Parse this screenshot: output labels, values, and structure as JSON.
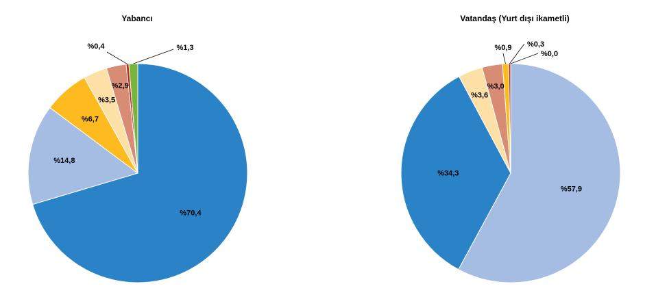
{
  "chart_data": [
    {
      "type": "pie",
      "title": "Yabancı",
      "start_angle_deg": 0,
      "direction": "clockwise",
      "slices": [
        {
          "label": "%70,4",
          "value": 70.4,
          "color": "#2a82c7"
        },
        {
          "label": "%14,8",
          "value": 14.8,
          "color": "#a6bde3"
        },
        {
          "label": "%6,7",
          "value": 6.7,
          "color": "#fdbb20"
        },
        {
          "label": "%3,5",
          "value": 3.5,
          "color": "#fde0a6"
        },
        {
          "label": "%2,9",
          "value": 2.9,
          "color": "#d88c74"
        },
        {
          "label": "%0,4",
          "value": 0.4,
          "color": "#c0281c"
        },
        {
          "label": "%1,3",
          "value": 1.3,
          "color": "#78b43c"
        }
      ]
    },
    {
      "type": "pie",
      "title": "Vatandaş (Yurt dışı ikametli)",
      "start_angle_deg": 0,
      "direction": "clockwise",
      "slices": [
        {
          "label": "%57,9",
          "value": 57.9,
          "color": "#a6bde3"
        },
        {
          "label": "%34,3",
          "value": 34.3,
          "color": "#2a82c7"
        },
        {
          "label": "%3,6",
          "value": 3.6,
          "color": "#fde0a6"
        },
        {
          "label": "%3,0",
          "value": 3.0,
          "color": "#d88c74"
        },
        {
          "label": "%0,9",
          "value": 0.9,
          "color": "#fdbb20"
        },
        {
          "label": "%0,3",
          "value": 0.3,
          "color": "#c0281c"
        },
        {
          "label": "%0,0",
          "value": 0.0,
          "color": "#78b43c"
        }
      ]
    }
  ]
}
